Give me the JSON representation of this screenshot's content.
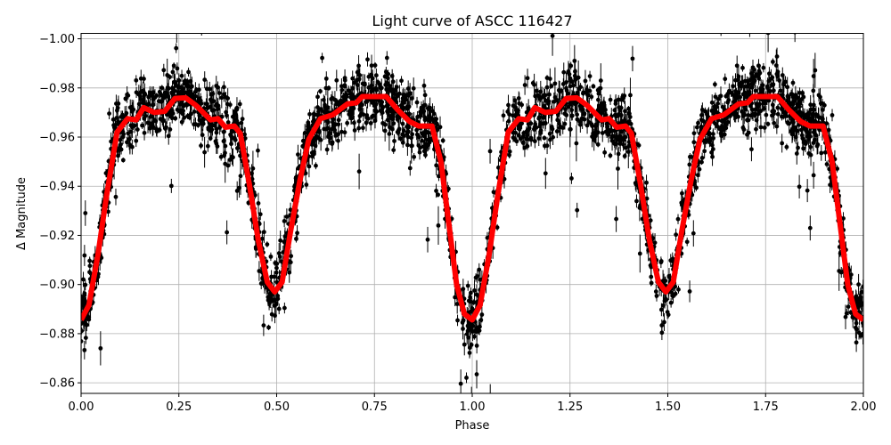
{
  "chart_data": {
    "type": "scatter",
    "title": "Light curve of ASCC 116427",
    "xlabel": "Phase",
    "ylabel": "Δ Magnitude",
    "xlim": [
      0.0,
      2.0
    ],
    "ylim": [
      -0.8557,
      -1.0022
    ],
    "y_inverted": true,
    "grid": true,
    "xticks": [
      "0.00",
      "0.25",
      "0.50",
      "0.75",
      "1.00",
      "1.25",
      "1.50",
      "1.75",
      "2.00"
    ],
    "xtick_values": [
      0,
      0.25,
      0.5,
      0.75,
      1.0,
      1.25,
      1.5,
      1.75,
      2.0
    ],
    "yticks": [
      "−1.00",
      "−0.98",
      "−0.96",
      "−0.94",
      "−0.92",
      "−0.90",
      "−0.88",
      "−0.86"
    ],
    "ytick_values": [
      -1.0,
      -0.98,
      -0.96,
      -0.94,
      -0.92,
      -0.9,
      -0.88,
      -0.86
    ],
    "series": [
      {
        "type": "errorbar-scatter",
        "color": "#000000",
        "description_level": "dense observations with error bars scattered about the model curve"
      },
      {
        "type": "line",
        "color": "#ff0000",
        "x": [
          0.0,
          0.02,
          0.043,
          0.065,
          0.092,
          0.119,
          0.141,
          0.16,
          0.187,
          0.214,
          0.24,
          0.267,
          0.293,
          0.331,
          0.35,
          0.369,
          0.392,
          0.407,
          0.43,
          0.453,
          0.476,
          0.495,
          0.514,
          0.536,
          0.559,
          0.582,
          0.612,
          0.643,
          0.681,
          0.704,
          0.719,
          0.78,
          0.81,
          0.84,
          0.863,
          0.897,
          0.92,
          0.94,
          0.96,
          0.98,
          1.0,
          1.02,
          1.043,
          1.065,
          1.092,
          1.119,
          1.141,
          1.16,
          1.187,
          1.214,
          1.24,
          1.267,
          1.293,
          1.331,
          1.35,
          1.369,
          1.392,
          1.407,
          1.43,
          1.453,
          1.476,
          1.495,
          1.514,
          1.536,
          1.559,
          1.582,
          1.612,
          1.643,
          1.681,
          1.704,
          1.719,
          1.78,
          1.81,
          1.84,
          1.863,
          1.897,
          1.92,
          1.94,
          1.96,
          1.98,
          2.0
        ],
        "y": [
          -0.8856,
          -0.8916,
          -0.912,
          -0.936,
          -0.962,
          -0.9675,
          -0.967,
          -0.972,
          -0.97,
          -0.9705,
          -0.9757,
          -0.976,
          -0.973,
          -0.967,
          -0.9675,
          -0.964,
          -0.9645,
          -0.9615,
          -0.941,
          -0.918,
          -0.901,
          -0.897,
          -0.901,
          -0.922,
          -0.942,
          -0.959,
          -0.9675,
          -0.969,
          -0.9735,
          -0.974,
          -0.9765,
          -0.9765,
          -0.971,
          -0.9663,
          -0.9645,
          -0.9645,
          -0.95,
          -0.925,
          -0.9,
          -0.888,
          -0.8856,
          -0.8916,
          -0.912,
          -0.936,
          -0.962,
          -0.9675,
          -0.967,
          -0.972,
          -0.97,
          -0.9705,
          -0.9757,
          -0.976,
          -0.973,
          -0.967,
          -0.9675,
          -0.964,
          -0.9645,
          -0.9615,
          -0.941,
          -0.918,
          -0.901,
          -0.897,
          -0.901,
          -0.922,
          -0.942,
          -0.959,
          -0.9675,
          -0.969,
          -0.9735,
          -0.974,
          -0.9765,
          -0.9765,
          -0.971,
          -0.9663,
          -0.9645,
          -0.9645,
          -0.95,
          -0.925,
          -0.9,
          -0.888,
          -0.8856
        ]
      }
    ]
  }
}
